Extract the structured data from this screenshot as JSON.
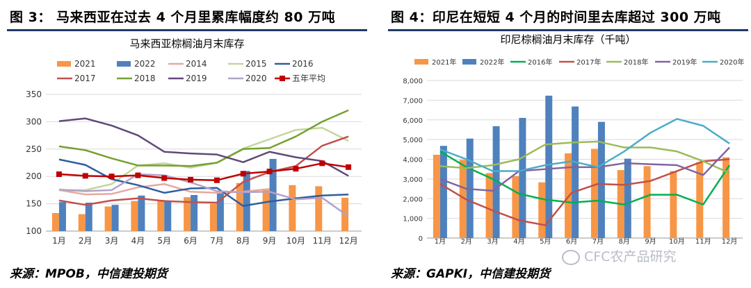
{
  "left": {
    "figure_title": "图 3： 马来西亚在过去 4 个月里累库幅度约 80 万吨",
    "source": "来源：MPOB，中信建投期货"
  },
  "right": {
    "figure_title": "图 4：印尼在短短 4 个月的时间里去库超过 300 万吨",
    "source": "来源：GAPKI，中信建投期货"
  },
  "watermark": "CFC农产品研究",
  "chart_data": [
    {
      "type": "bar",
      "title": "马来西亚棕榈油月末库存",
      "categories": [
        "1月",
        "2月",
        "3月",
        "4月",
        "5月",
        "6月",
        "7月",
        "8月",
        "9月",
        "10月",
        "11月",
        "12月"
      ],
      "ylim": [
        100,
        350
      ],
      "yticks": [
        100,
        150,
        200,
        250,
        300,
        350
      ],
      "legend_placement": "top",
      "grid": true,
      "bars": [
        {
          "name": "2021",
          "color": "#f79646",
          "values": [
            133,
            131,
            145,
            155,
            157,
            162,
            150,
            188,
            175,
            184,
            182,
            161
          ]
        },
        {
          "name": "2022",
          "color": "#4f81bd",
          "values": [
            153,
            152,
            148,
            165,
            155,
            166,
            173,
            210,
            232,
            null,
            null,
            null
          ]
        }
      ],
      "lines": [
        {
          "name": "2014",
          "color": "#e6a8a0",
          "values": [
            175,
            167,
            168,
            180,
            186,
            172,
            170,
            172,
            177,
            null,
            null,
            null
          ]
        },
        {
          "name": "2015",
          "color": "#c3d69b",
          "values": [
            175,
            175,
            186,
            220,
            224,
            216,
            225,
            251,
            268,
            285,
            289,
            265
          ]
        },
        {
          "name": "2016",
          "color": "#2e5e9e",
          "values": [
            231,
            221,
            195,
            184,
            170,
            178,
            179,
            146,
            154,
            160,
            165,
            167
          ]
        },
        {
          "name": "2017",
          "color": "#c0504d",
          "values": [
            156,
            148,
            156,
            160,
            155,
            153,
            152,
            190,
            208,
            219,
            256,
            273
          ]
        },
        {
          "name": "2018",
          "color": "#77a02e",
          "values": [
            255,
            248,
            233,
            220,
            220,
            219,
            225,
            250,
            252,
            273,
            300,
            321
          ]
        },
        {
          "name": "2019",
          "color": "#60497a",
          "values": [
            301,
            306,
            293,
            275,
            245,
            242,
            240,
            226,
            245,
            235,
            228,
            201
          ]
        },
        {
          "name": "2020",
          "color": "#b3a2c7",
          "values": [
            176,
            173,
            175,
            204,
            202,
            189,
            173,
            171,
            172,
            158,
            161,
            127
          ]
        },
        {
          "name": "五年平均",
          "color": "#c00000",
          "marker": "square",
          "values": [
            204,
            201,
            200,
            202,
            197,
            194,
            193,
            205,
            209,
            214,
            224,
            217
          ]
        }
      ]
    },
    {
      "type": "bar",
      "title": "印尼棕榈油月末库存（千吨）",
      "categories": [
        "1月",
        "2月",
        "3月",
        "4月",
        "5月",
        "6月",
        "7月",
        "8月",
        "9月",
        "10月",
        "11月",
        "12月"
      ],
      "ylim": [
        0,
        8000
      ],
      "yticks": [
        0,
        1000,
        2000,
        3000,
        4000,
        5000,
        6000,
        7000,
        8000
      ],
      "ytick_labels": [
        "0",
        "1,000",
        "2,000",
        "3,000",
        "4,000",
        "5,000",
        "6,000",
        "7,000",
        "8,000"
      ],
      "legend_placement": "top",
      "grid": true,
      "bars": [
        {
          "name": "2021年",
          "color": "#f79646",
          "values": [
            4230,
            3970,
            3300,
            3150,
            2830,
            4300,
            4530,
            3450,
            3650,
            3400,
            3850,
            4100
          ]
        },
        {
          "name": "2022年",
          "color": "#4f81bd",
          "values": [
            4680,
            5050,
            5680,
            6100,
            7230,
            6680,
            5900,
            4030,
            null,
            null,
            null,
            null
          ]
        }
      ],
      "lines": [
        {
          "name": "2016年",
          "color": "#00b050",
          "values": [
            4400,
            3600,
            3000,
            2250,
            1950,
            1800,
            1900,
            1700,
            2200,
            2200,
            1700,
            3700
          ]
        },
        {
          "name": "2017年",
          "color": "#c0504d",
          "values": [
            2750,
            1950,
            1400,
            900,
            650,
            2300,
            2750,
            2700,
            2900,
            3400,
            3900,
            4000
          ]
        },
        {
          "name": "2018年",
          "color": "#9bbb59",
          "values": [
            3650,
            3550,
            3700,
            4000,
            4750,
            4850,
            4900,
            4600,
            4600,
            4400,
            3900,
            3300
          ]
        },
        {
          "name": "2019年",
          "color": "#8064a2",
          "values": [
            3000,
            2500,
            2400,
            3400,
            3500,
            3600,
            3600,
            3800,
            3750,
            3700,
            3200,
            4600
          ]
        },
        {
          "name": "2020年",
          "color": "#4bacc6",
          "values": [
            4500,
            4000,
            3400,
            3400,
            3700,
            3900,
            3600,
            4400,
            5350,
            6050,
            5700,
            4800
          ]
        }
      ]
    }
  ]
}
